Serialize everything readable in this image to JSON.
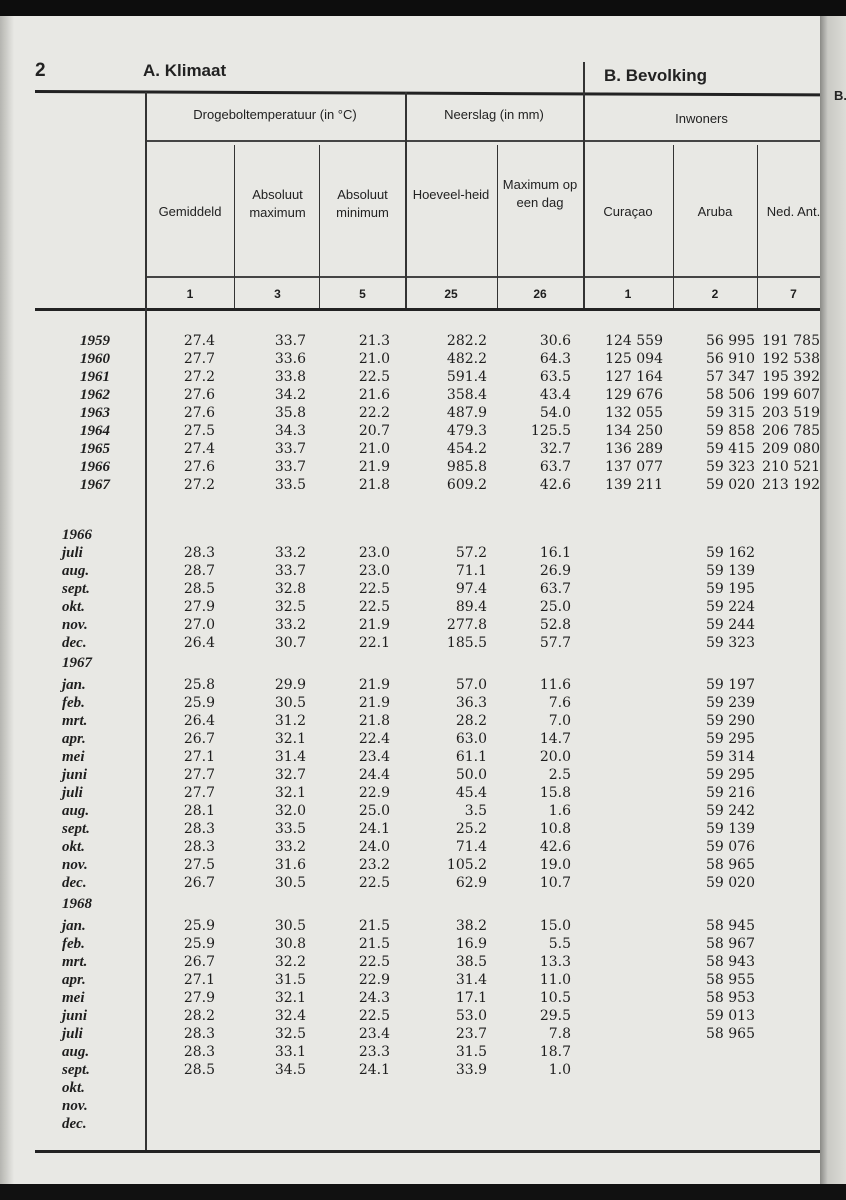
{
  "page_number": "2",
  "section_a": "A.  Klimaat",
  "section_b": "B.  Bevolking",
  "next_page_fragment": "B.",
  "groups": {
    "temperature": "Drogeboltemperatuur (in °C)",
    "rainfall": "Neerslag (in mm)",
    "population": "Inwoners"
  },
  "columns": [
    {
      "label": "Gemiddeld",
      "num": "1"
    },
    {
      "label": "Absoluut maximum",
      "num": "3"
    },
    {
      "label": "Absoluut minimum",
      "num": "5"
    },
    {
      "label": "Hoeveel-heid",
      "num": "25"
    },
    {
      "label": "Maximum op een dag",
      "num": "26"
    },
    {
      "label": "Curaçao",
      "num": "1"
    },
    {
      "label": "Aruba",
      "num": "2"
    },
    {
      "label": "Ned. Ant.",
      "num": "7"
    }
  ],
  "annual": [
    {
      "label": "1959",
      "values": [
        "27.4",
        "33.7",
        "21.3",
        "282.2",
        "30.6",
        "124 559",
        "56 995",
        "191 785"
      ]
    },
    {
      "label": "1960",
      "values": [
        "27.7",
        "33.6",
        "21.0",
        "482.2",
        "64.3",
        "125 094",
        "56 910",
        "192 538"
      ]
    },
    {
      "label": "1961",
      "values": [
        "27.2",
        "33.8",
        "22.5",
        "591.4",
        "63.5",
        "127 164",
        "57 347",
        "195 392"
      ]
    },
    {
      "label": "1962",
      "values": [
        "27.6",
        "34.2",
        "21.6",
        "358.4",
        "43.4",
        "129 676",
        "58 506",
        "199 607"
      ]
    },
    {
      "label": "1963",
      "values": [
        "27.6",
        "35.8",
        "22.2",
        "487.9",
        "54.0",
        "132 055",
        "59 315",
        "203 519"
      ]
    },
    {
      "label": "1964",
      "values": [
        "27.5",
        "34.3",
        "20.7",
        "479.3",
        "125.5",
        "134 250",
        "59 858",
        "206 785"
      ]
    },
    {
      "label": "1965",
      "values": [
        "27.4",
        "33.7",
        "21.0",
        "454.2",
        "32.7",
        "136 289",
        "59 415",
        "209 080"
      ]
    },
    {
      "label": "1966",
      "values": [
        "27.6",
        "33.7",
        "21.9",
        "985.8",
        "63.7",
        "137 077",
        "59 323",
        "210 521"
      ]
    },
    {
      "label": "1967",
      "values": [
        "27.2",
        "33.5",
        "21.8",
        "609.2",
        "42.6",
        "139 211",
        "59 020",
        "213 192"
      ]
    }
  ],
  "monthly": [
    {
      "year": "1966",
      "rows": [
        {
          "month": "juli",
          "values": [
            "28.3",
            "33.2",
            "23.0",
            "57.2",
            "16.1",
            "",
            "59 162",
            ""
          ]
        },
        {
          "month": "aug.",
          "values": [
            "28.7",
            "33.7",
            "23.0",
            "71.1",
            "26.9",
            "",
            "59 139",
            ""
          ]
        },
        {
          "month": "sept.",
          "values": [
            "28.5",
            "32.8",
            "22.5",
            "97.4",
            "63.7",
            "",
            "59 195",
            ""
          ]
        },
        {
          "month": "okt.",
          "values": [
            "27.9",
            "32.5",
            "22.5",
            "89.4",
            "25.0",
            "",
            "59 224",
            ""
          ]
        },
        {
          "month": "nov.",
          "values": [
            "27.0",
            "33.2",
            "21.9",
            "277.8",
            "52.8",
            "",
            "59 244",
            ""
          ]
        },
        {
          "month": "dec.",
          "values": [
            "26.4",
            "30.7",
            "22.1",
            "185.5",
            "57.7",
            "",
            "59 323",
            ""
          ]
        }
      ]
    },
    {
      "year": "1967",
      "rows": [
        {
          "month": "jan.",
          "values": [
            "25.8",
            "29.9",
            "21.9",
            "57.0",
            "11.6",
            "",
            "59 197",
            ""
          ]
        },
        {
          "month": "feb.",
          "values": [
            "25.9",
            "30.5",
            "21.9",
            "36.3",
            "7.6",
            "",
            "59 239",
            ""
          ]
        },
        {
          "month": "mrt.",
          "values": [
            "26.4",
            "31.2",
            "21.8",
            "28.2",
            "7.0",
            "",
            "59 290",
            ""
          ]
        },
        {
          "month": "apr.",
          "values": [
            "26.7",
            "32.1",
            "22.4",
            "63.0",
            "14.7",
            "",
            "59 295",
            ""
          ]
        },
        {
          "month": "mei",
          "values": [
            "27.1",
            "31.4",
            "23.4",
            "61.1",
            "20.0",
            "",
            "59 314",
            ""
          ]
        },
        {
          "month": "juni",
          "values": [
            "27.7",
            "32.7",
            "24.4",
            "50.0",
            "2.5",
            "",
            "59 295",
            ""
          ]
        },
        {
          "month": "juli",
          "values": [
            "27.7",
            "32.1",
            "22.9",
            "45.4",
            "15.8",
            "",
            "59 216",
            ""
          ]
        },
        {
          "month": "aug.",
          "values": [
            "28.1",
            "32.0",
            "25.0",
            "3.5",
            "1.6",
            "",
            "59 242",
            ""
          ]
        },
        {
          "month": "sept.",
          "values": [
            "28.3",
            "33.5",
            "24.1",
            "25.2",
            "10.8",
            "",
            "59 139",
            ""
          ]
        },
        {
          "month": "okt.",
          "values": [
            "28.3",
            "33.2",
            "24.0",
            "71.4",
            "42.6",
            "",
            "59 076",
            ""
          ]
        },
        {
          "month": "nov.",
          "values": [
            "27.5",
            "31.6",
            "23.2",
            "105.2",
            "19.0",
            "",
            "58 965",
            ""
          ]
        },
        {
          "month": "dec.",
          "values": [
            "26.7",
            "30.5",
            "22.5",
            "62.9",
            "10.7",
            "",
            "59 020",
            ""
          ]
        }
      ]
    },
    {
      "year": "1968",
      "rows": [
        {
          "month": "jan.",
          "values": [
            "25.9",
            "30.5",
            "21.5",
            "38.2",
            "15.0",
            "",
            "58 945",
            ""
          ]
        },
        {
          "month": "feb.",
          "values": [
            "25.9",
            "30.8",
            "21.5",
            "16.9",
            "5.5",
            "",
            "58 967",
            ""
          ]
        },
        {
          "month": "mrt.",
          "values": [
            "26.7",
            "32.2",
            "22.5",
            "38.5",
            "13.3",
            "",
            "58 943",
            ""
          ]
        },
        {
          "month": "apr.",
          "values": [
            "27.1",
            "31.5",
            "22.9",
            "31.4",
            "11.0",
            "",
            "58 955",
            ""
          ]
        },
        {
          "month": "mei",
          "values": [
            "27.9",
            "32.1",
            "24.3",
            "17.1",
            "10.5",
            "",
            "58 953",
            ""
          ]
        },
        {
          "month": "juni",
          "values": [
            "28.2",
            "32.4",
            "22.5",
            "53.0",
            "29.5",
            "",
            "59 013",
            ""
          ]
        },
        {
          "month": "juli",
          "values": [
            "28.3",
            "32.5",
            "23.4",
            "23.7",
            "7.8",
            "",
            "58 965",
            ""
          ]
        },
        {
          "month": "aug.",
          "values": [
            "28.3",
            "33.1",
            "23.3",
            "31.5",
            "18.7",
            "",
            "",
            ""
          ]
        },
        {
          "month": "sept.",
          "values": [
            "28.5",
            "34.5",
            "24.1",
            "33.9",
            "1.0",
            "",
            "",
            ""
          ]
        },
        {
          "month": "okt.",
          "values": [
            "",
            "",
            "",
            "",
            "",
            "",
            "",
            ""
          ]
        },
        {
          "month": "nov.",
          "values": [
            "",
            "",
            "",
            "",
            "",
            "",
            "",
            ""
          ]
        },
        {
          "month": "dec.",
          "values": [
            "",
            "",
            "",
            "",
            "",
            "",
            "",
            ""
          ]
        }
      ]
    }
  ]
}
